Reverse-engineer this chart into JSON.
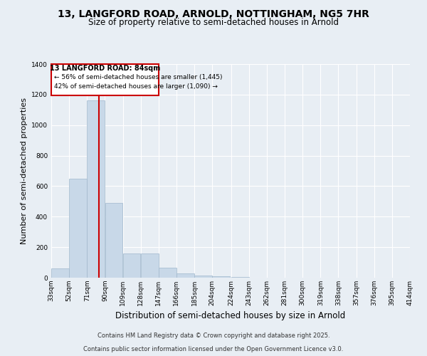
{
  "title1": "13, LANGFORD ROAD, ARNOLD, NOTTINGHAM, NG5 7HR",
  "title2": "Size of property relative to semi-detached houses in Arnold",
  "xlabel": "Distribution of semi-detached houses by size in Arnold",
  "ylabel": "Number of semi-detached properties",
  "property_label": "13 LANGFORD ROAD: 84sqm",
  "pct_smaller": 56,
  "pct_larger": 42,
  "n_smaller": 1445,
  "n_larger": 1090,
  "bin_edges": [
    33,
    52,
    71,
    90,
    109,
    128,
    147,
    166,
    185,
    204,
    224,
    243,
    262,
    281,
    300,
    319,
    338,
    357,
    376,
    395,
    414
  ],
  "bin_counts": [
    60,
    650,
    1160,
    490,
    160,
    160,
    65,
    30,
    15,
    10,
    5,
    0,
    0,
    0,
    0,
    0,
    0,
    0,
    0,
    0
  ],
  "bar_color": "#c8d8e8",
  "bar_edge_color": "#a0b8cc",
  "vline_color": "#cc0000",
  "vline_x": 84,
  "box_color": "#cc0000",
  "background_color": "#e8eef4",
  "grid_color": "#ffffff",
  "tick_labels": [
    "33sqm",
    "52sqm",
    "71sqm",
    "90sqm",
    "109sqm",
    "128sqm",
    "147sqm",
    "166sqm",
    "185sqm",
    "204sqm",
    "224sqm",
    "243sqm",
    "262sqm",
    "281sqm",
    "300sqm",
    "319sqm",
    "338sqm",
    "357sqm",
    "376sqm",
    "395sqm",
    "414sqm"
  ],
  "ylim": [
    0,
    1400
  ],
  "yticks": [
    0,
    200,
    400,
    600,
    800,
    1000,
    1200,
    1400
  ],
  "footer1": "Contains HM Land Registry data © Crown copyright and database right 2025.",
  "footer2": "Contains public sector information licensed under the Open Government Licence v3.0.",
  "title1_fontsize": 10,
  "title2_fontsize": 8.5,
  "ylabel_fontsize": 8,
  "xlabel_fontsize": 8.5,
  "tick_fontsize": 6.5,
  "footer_fontsize": 6.0
}
